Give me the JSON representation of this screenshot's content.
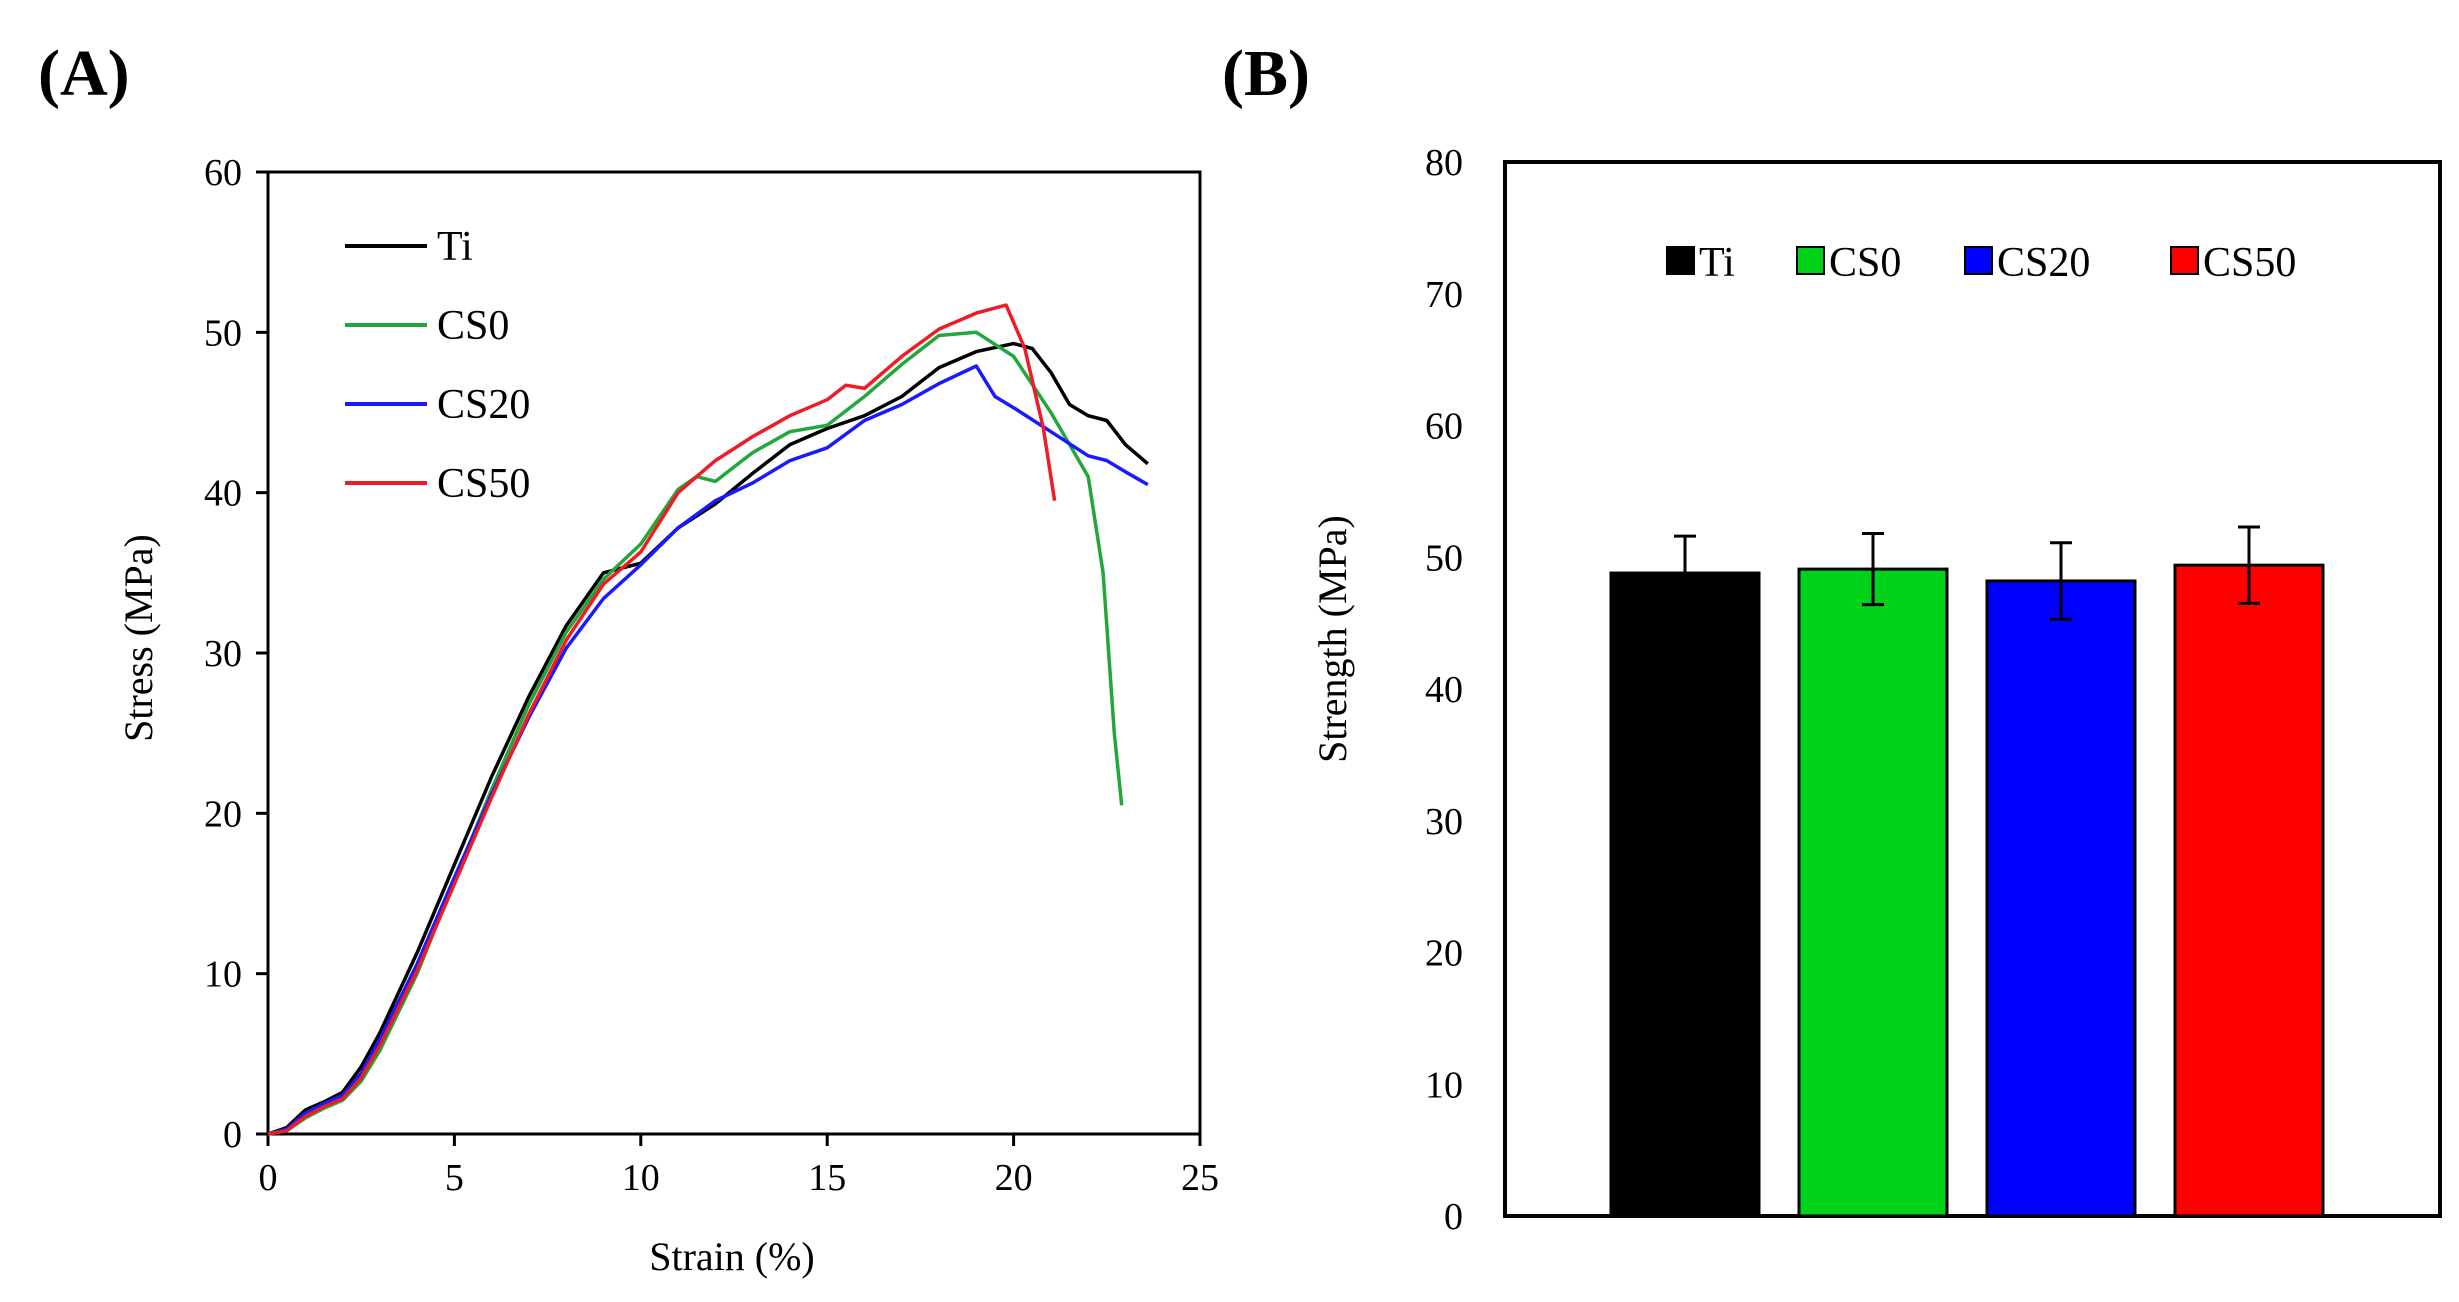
{
  "panels": {
    "a_label": "(A)",
    "b_label": "(B)"
  },
  "chart_data": [
    {
      "type": "line",
      "xlabel": "Strain (%)",
      "ylabel": "Stress (MPa)",
      "xlim": [
        0,
        25
      ],
      "ylim": [
        0,
        60
      ],
      "xticks": [
        0,
        5,
        10,
        15,
        20,
        25
      ],
      "yticks": [
        0,
        10,
        20,
        30,
        40,
        50,
        60
      ],
      "grid": false,
      "legend_position": "top-left",
      "series": [
        {
          "name": "Ti",
          "color": "#000000",
          "points": [
            [
              0,
              0
            ],
            [
              0.5,
              0.4
            ],
            [
              1,
              1.5
            ],
            [
              1.5,
              2.0
            ],
            [
              2,
              2.6
            ],
            [
              2.5,
              4.2
            ],
            [
              3,
              6.3
            ],
            [
              4,
              11.3
            ],
            [
              5,
              16.8
            ],
            [
              6,
              22.3
            ],
            [
              7,
              27.3
            ],
            [
              8,
              31.7
            ],
            [
              9,
              35.0
            ],
            [
              10,
              35.6
            ],
            [
              11,
              37.8
            ],
            [
              12,
              39.3
            ],
            [
              13,
              41.2
            ],
            [
              14,
              43.0
            ],
            [
              15,
              44.0
            ],
            [
              16,
              44.8
            ],
            [
              17,
              46.0
            ],
            [
              18,
              47.8
            ],
            [
              19,
              48.8
            ],
            [
              20,
              49.3
            ],
            [
              20.5,
              49.0
            ],
            [
              21,
              47.5
            ],
            [
              21.5,
              45.5
            ],
            [
              22,
              44.8
            ],
            [
              22.5,
              44.5
            ],
            [
              23,
              43.0
            ],
            [
              23.6,
              41.8
            ]
          ]
        },
        {
          "name": "CS0",
          "color": "#22a83a",
          "points": [
            [
              0,
              0
            ],
            [
              0.5,
              0.2
            ],
            [
              1,
              1.0
            ],
            [
              1.5,
              1.6
            ],
            [
              2,
              2.1
            ],
            [
              2.5,
              3.3
            ],
            [
              3,
              5.2
            ],
            [
              4,
              10.0
            ],
            [
              5,
              15.8
            ],
            [
              6,
              21.5
            ],
            [
              7,
              26.8
            ],
            [
              8,
              31.3
            ],
            [
              9,
              34.6
            ],
            [
              10,
              36.8
            ],
            [
              11,
              40.2
            ],
            [
              11.5,
              41.0
            ],
            [
              12,
              40.7
            ],
            [
              13,
              42.5
            ],
            [
              14,
              43.8
            ],
            [
              15,
              44.2
            ],
            [
              16,
              46.0
            ],
            [
              17,
              48.0
            ],
            [
              18,
              49.8
            ],
            [
              19,
              50.0
            ],
            [
              20,
              48.5
            ],
            [
              21,
              45.0
            ],
            [
              22,
              41.0
            ],
            [
              22.4,
              35.0
            ],
            [
              22.7,
              25.0
            ],
            [
              22.9,
              20.5
            ]
          ]
        },
        {
          "name": "CS20",
          "color": "#1a1aff",
          "points": [
            [
              0,
              0
            ],
            [
              0.5,
              0.3
            ],
            [
              1,
              1.3
            ],
            [
              1.5,
              1.9
            ],
            [
              2,
              2.4
            ],
            [
              2.5,
              3.8
            ],
            [
              3,
              5.9
            ],
            [
              4,
              10.6
            ],
            [
              5,
              16.0
            ],
            [
              6,
              21.2
            ],
            [
              7,
              26.0
            ],
            [
              8,
              30.3
            ],
            [
              9,
              33.4
            ],
            [
              10,
              35.5
            ],
            [
              11,
              37.8
            ],
            [
              12,
              39.5
            ],
            [
              13,
              40.6
            ],
            [
              14,
              42.0
            ],
            [
              15,
              42.8
            ],
            [
              16,
              44.5
            ],
            [
              17,
              45.5
            ],
            [
              18,
              46.8
            ],
            [
              19,
              47.9
            ],
            [
              19.5,
              46.0
            ],
            [
              20,
              45.3
            ],
            [
              21,
              43.8
            ],
            [
              22,
              42.3
            ],
            [
              22.5,
              42.0
            ],
            [
              23,
              41.3
            ],
            [
              23.6,
              40.5
            ]
          ]
        },
        {
          "name": "CS50",
          "color": "#ee1c25",
          "points": [
            [
              0,
              0
            ],
            [
              0.5,
              0.2
            ],
            [
              1,
              1.1
            ],
            [
              1.5,
              1.7
            ],
            [
              2,
              2.2
            ],
            [
              2.5,
              3.5
            ],
            [
              3,
              5.5
            ],
            [
              4,
              10.2
            ],
            [
              5,
              15.6
            ],
            [
              6,
              21.0
            ],
            [
              7,
              26.2
            ],
            [
              8,
              30.8
            ],
            [
              9,
              34.3
            ],
            [
              10,
              36.3
            ],
            [
              11,
              40.0
            ],
            [
              11.5,
              41.0
            ],
            [
              12,
              42.0
            ],
            [
              13,
              43.5
            ],
            [
              14,
              44.8
            ],
            [
              15,
              45.8
            ],
            [
              15.5,
              46.7
            ],
            [
              16,
              46.5
            ],
            [
              17,
              48.5
            ],
            [
              18,
              50.2
            ],
            [
              19,
              51.2
            ],
            [
              19.8,
              51.7
            ],
            [
              20.3,
              49.0
            ],
            [
              20.8,
              44.0
            ],
            [
              21.1,
              39.5
            ]
          ]
        }
      ]
    },
    {
      "type": "bar",
      "xlabel": "",
      "ylabel": "Strength (MPa)",
      "ylim": [
        0,
        80
      ],
      "yticks": [
        0,
        10,
        20,
        30,
        40,
        50,
        60,
        70,
        80
      ],
      "grid": false,
      "legend_position": "top",
      "categories": [
        "Ti",
        "CS0",
        "CS20",
        "CS50"
      ],
      "values": [
        48.8,
        49.1,
        48.2,
        49.4
      ],
      "errors": [
        2.8,
        2.7,
        2.9,
        2.9
      ],
      "colors": [
        "#000000",
        "#00d21a",
        "#0000ff",
        "#ff0000"
      ]
    }
  ]
}
